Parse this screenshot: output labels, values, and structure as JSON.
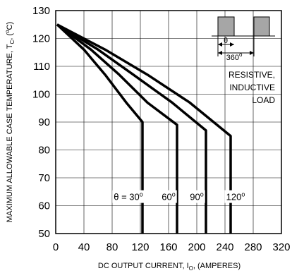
{
  "chart_data": {
    "type": "line",
    "title": "",
    "xlabel_parts": {
      "pre": "DC OUTPUT CURRENT, I",
      "sub": "O",
      "post": ", (AMPERES)"
    },
    "ylabel_parts": {
      "pre": "MAXIMUM ALLOWABLE CASE TEMPERATURE, T",
      "sub": "C",
      "mid": ", (",
      "sup": "o",
      "post": "C)"
    },
    "xlim": [
      0,
      320
    ],
    "ylim": [
      50,
      130
    ],
    "x_ticks": [
      "0",
      "40",
      "80",
      "120",
      "160",
      "200",
      "240",
      "280",
      "320"
    ],
    "x_tick_values": [
      0,
      40,
      80,
      120,
      160,
      200,
      240,
      280,
      320
    ],
    "y_ticks": [
      "50",
      "60",
      "70",
      "80",
      "90",
      "100",
      "110",
      "120",
      "130"
    ],
    "y_tick_values": [
      50,
      60,
      70,
      80,
      90,
      100,
      110,
      120,
      130
    ],
    "grid": true,
    "series": [
      {
        "name": "θ = 30",
        "label_sup": "o",
        "points": [
          [
            2,
            125
          ],
          [
            40,
            116
          ],
          [
            70,
            107
          ],
          [
            100,
            97
          ],
          [
            123,
            90
          ],
          [
            123,
            50
          ]
        ]
      },
      {
        "name": "60",
        "label_sup": "o",
        "points": [
          [
            2,
            125
          ],
          [
            50,
            116
          ],
          [
            90,
            107
          ],
          [
            130,
            97
          ],
          [
            172,
            89
          ],
          [
            172,
            50
          ]
        ]
      },
      {
        "name": "90",
        "label_sup": "o",
        "points": [
          [
            2,
            125
          ],
          [
            60,
            116
          ],
          [
            110,
            107
          ],
          [
            165,
            97
          ],
          [
            213,
            87
          ],
          [
            213,
            50
          ]
        ]
      },
      {
        "name": "120",
        "label_sup": "o",
        "points": [
          [
            2,
            125
          ],
          [
            70,
            116
          ],
          [
            130,
            107
          ],
          [
            190,
            97
          ],
          [
            248,
            85
          ],
          [
            248,
            50
          ]
        ]
      }
    ],
    "series_label_x": [
      103,
      160,
      200,
      255
    ],
    "series_label_y": 62,
    "inset": {
      "theta_label": "θ",
      "period_label": "360",
      "period_sup": "o",
      "load_lines": [
        "RESISTIVE,",
        "INDUCTIVE",
        "LOAD"
      ]
    }
  }
}
